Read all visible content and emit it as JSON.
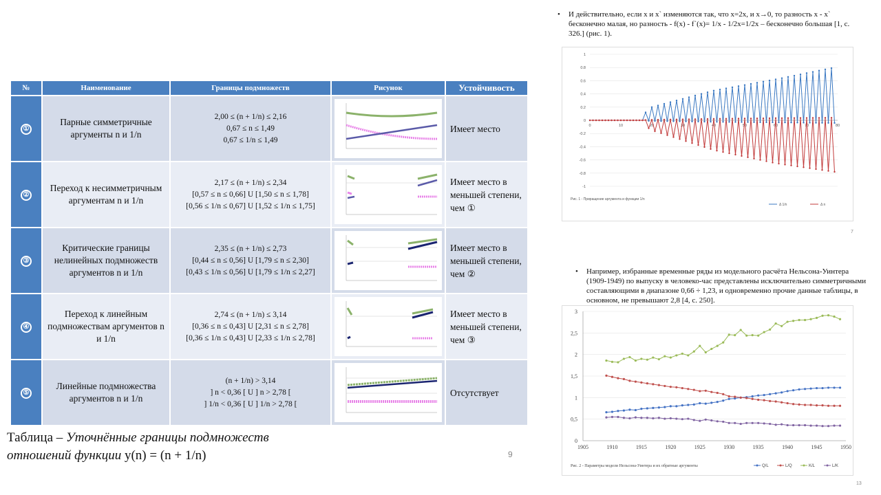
{
  "table": {
    "headers": {
      "num": "№",
      "name": "Наименование",
      "bounds": "Границы подмножеств",
      "figure": "Рисунок",
      "stability": "Устойчивость"
    },
    "rows": [
      {
        "num": "①",
        "name": "Парные симметричные аргументы  n и 1/n",
        "bounds": [
          "2,00 ≤ (n + 1/n) ≤ 2,16",
          "0,67 ≤ n ≤ 1,49",
          "0,67 ≤ 1/n ≤ 1,49"
        ],
        "stability": "Имеет место"
      },
      {
        "num": "②",
        "name": "Переход к несимметричным аргументам  n и 1/n",
        "bounds": [
          "2,17 ≤ (n + 1/n) ≤ 2,34",
          "[0,57 ≤ n ≤ 0,66] U [1,50 ≤ n ≤ 1,78]",
          "[0,56 ≤ 1/n ≤ 0,67] U [1,52 ≤ 1/n ≤ 1,75]"
        ],
        "stability": "Имеет место в меньшей степени, чем ①"
      },
      {
        "num": "③",
        "name": "Критические границы нелинейных подмножеств аргументов  n и 1/n",
        "bounds": [
          "2,35 ≤ (n + 1/n) ≤ 2,73",
          "[0,44 ≤ n ≤ 0,56] U [1,79 ≤ n ≤ 2,30]",
          "[0,43 ≤ 1/n ≤ 0,56] U [1,79 ≤ 1/n ≤ 2,27]"
        ],
        "stability": "Имеет место в меньшей степени, чем ②"
      },
      {
        "num": "④",
        "name": "Переход к линейным подмножествам аргументов  n и 1/n",
        "bounds": [
          "2,74 ≤ (n + 1/n) ≤ 3,14",
          "[0,36 ≤ n ≤ 0,43] U [2,31 ≤ n ≤ 2,78]",
          "[0,36 ≤ 1/n ≤ 0,43] U [2,33 ≤ 1/n ≤ 2,78]"
        ],
        "stability": "Имеет место в меньшей степени, чем ③"
      },
      {
        "num": "⑤",
        "name": "Линейные подмножества аргументов  n и 1/n",
        "bounds": [
          "(n + 1/n) > 3,14",
          "] n < 0,36 [ U ]  n > 2,78 [",
          "] 1/n < 0,36  [ U ] 1/n > 2,78 ["
        ],
        "stability": "Отсутствует"
      }
    ]
  },
  "caption": {
    "prefix": "Таблица – ",
    "italic": "Уточнённые границы подмножеств отношений функции",
    "formula": " y(n) = (n + 1/n)"
  },
  "page_numbers": {
    "left": "9",
    "right_top": "7",
    "right_bottom": "13"
  },
  "bullet1": {
    "text": "И действительно, если x и x` изменяются так, что x=2x, и x→0, то разность x - x` бесконечно малая, но разность - f(x) - f`(x)= 1/x - 1/2x=1/2x – бесконечно большая [1, с. 326.] (рис. 1)."
  },
  "bullet2": {
    "text": "Например, избранные временные ряды из модельного расчёта Нельсона-Уинтера (1909-1949) по выпуску в человеко-час представлены исключительно симметричными составляющими в диапазоне 0,66 ÷ 1,23, и одновременно прочие данные таблицы, в основном, не превышают 2,8 [4, с. 250]."
  },
  "chart_data": [
    {
      "type": "line",
      "caption": "Рис. 1 - Приращение аргумента и функции 1/n",
      "xlim": [
        0,
        80
      ],
      "ylim": [
        -1,
        1
      ],
      "xticks": [
        0,
        10,
        20,
        30,
        40,
        50,
        60,
        70,
        80
      ],
      "yticks": [
        1,
        0.8,
        0.6,
        0.4,
        0.2,
        0,
        -0.2,
        -0.4,
        -0.6,
        -0.8,
        -1
      ],
      "series": [
        {
          "name": "Δ 1/n",
          "color": "#3a78c2",
          "amplitude_envelope": [
            [
              0,
              0
            ],
            [
              15,
              0
            ],
            [
              20,
              0.2
            ],
            [
              40,
              0.45
            ],
            [
              60,
              0.62
            ],
            [
              79,
              0.8
            ]
          ]
        },
        {
          "name": "Δ n",
          "color": "#c23a3a",
          "amplitude_envelope": [
            [
              0,
              0
            ],
            [
              15,
              0
            ],
            [
              20,
              -0.15
            ],
            [
              40,
              -0.45
            ],
            [
              60,
              -0.65
            ],
            [
              79,
              -0.78
            ]
          ]
        }
      ],
      "legend": [
        "Δ 1/n",
        "Δ n"
      ]
    },
    {
      "type": "line",
      "caption": "Рис. 2 - Параметры модели Нельсона-Уинтера и их обратные аргументы",
      "xlim": [
        1905,
        1950
      ],
      "ylim": [
        0,
        3
      ],
      "xticks": [
        1905,
        1910,
        1915,
        1920,
        1925,
        1930,
        1935,
        1940,
        1945,
        1950
      ],
      "yticks": [
        0,
        0.5,
        1,
        1.5,
        2,
        2.5,
        3
      ],
      "x": [
        1909,
        1910,
        1911,
        1912,
        1913,
        1914,
        1915,
        1916,
        1917,
        1918,
        1919,
        1920,
        1921,
        1922,
        1923,
        1924,
        1925,
        1926,
        1927,
        1928,
        1929,
        1930,
        1931,
        1932,
        1933,
        1934,
        1935,
        1936,
        1937,
        1938,
        1939,
        1940,
        1941,
        1942,
        1943,
        1944,
        1945,
        1946,
        1947,
        1948,
        1949
      ],
      "series": [
        {
          "name": "Q/L",
          "color": "#4472c4",
          "values": [
            0.66,
            0.67,
            0.69,
            0.7,
            0.72,
            0.71,
            0.74,
            0.75,
            0.76,
            0.77,
            0.78,
            0.8,
            0.8,
            0.82,
            0.83,
            0.84,
            0.87,
            0.86,
            0.88,
            0.9,
            0.93,
            0.97,
            0.98,
            1.0,
            1.01,
            1.03,
            1.05,
            1.06,
            1.08,
            1.1,
            1.12,
            1.15,
            1.17,
            1.19,
            1.2,
            1.21,
            1.22,
            1.22,
            1.23,
            1.23,
            1.23
          ]
        },
        {
          "name": "L/Q",
          "color": "#c0504d",
          "values": [
            1.51,
            1.48,
            1.45,
            1.43,
            1.39,
            1.37,
            1.35,
            1.33,
            1.31,
            1.29,
            1.27,
            1.25,
            1.24,
            1.22,
            1.2,
            1.18,
            1.15,
            1.16,
            1.13,
            1.11,
            1.08,
            1.03,
            1.02,
            1.0,
            0.99,
            0.97,
            0.95,
            0.94,
            0.92,
            0.91,
            0.89,
            0.87,
            0.85,
            0.84,
            0.83,
            0.83,
            0.82,
            0.82,
            0.81,
            0.81,
            0.81
          ]
        },
        {
          "name": "K/L",
          "color": "#9bbb59",
          "values": [
            1.86,
            1.83,
            1.82,
            1.9,
            1.94,
            1.86,
            1.9,
            1.88,
            1.93,
            1.89,
            1.96,
            1.93,
            1.98,
            2.02,
            1.98,
            2.07,
            2.2,
            2.05,
            2.13,
            2.2,
            2.28,
            2.46,
            2.45,
            2.57,
            2.44,
            2.45,
            2.44,
            2.52,
            2.58,
            2.72,
            2.66,
            2.76,
            2.78,
            2.8,
            2.8,
            2.82,
            2.85,
            2.9,
            2.91,
            2.88,
            2.82
          ]
        },
        {
          "name": "L/K",
          "color": "#8064a2",
          "values": [
            0.54,
            0.55,
            0.55,
            0.53,
            0.52,
            0.54,
            0.53,
            0.53,
            0.52,
            0.53,
            0.51,
            0.52,
            0.51,
            0.5,
            0.51,
            0.48,
            0.46,
            0.49,
            0.47,
            0.45,
            0.44,
            0.41,
            0.41,
            0.39,
            0.41,
            0.41,
            0.41,
            0.4,
            0.39,
            0.37,
            0.38,
            0.36,
            0.36,
            0.36,
            0.36,
            0.35,
            0.35,
            0.34,
            0.34,
            0.35,
            0.35
          ]
        }
      ],
      "legend": [
        "Q/L",
        "L/Q",
        "K/L",
        "L/K"
      ]
    }
  ]
}
